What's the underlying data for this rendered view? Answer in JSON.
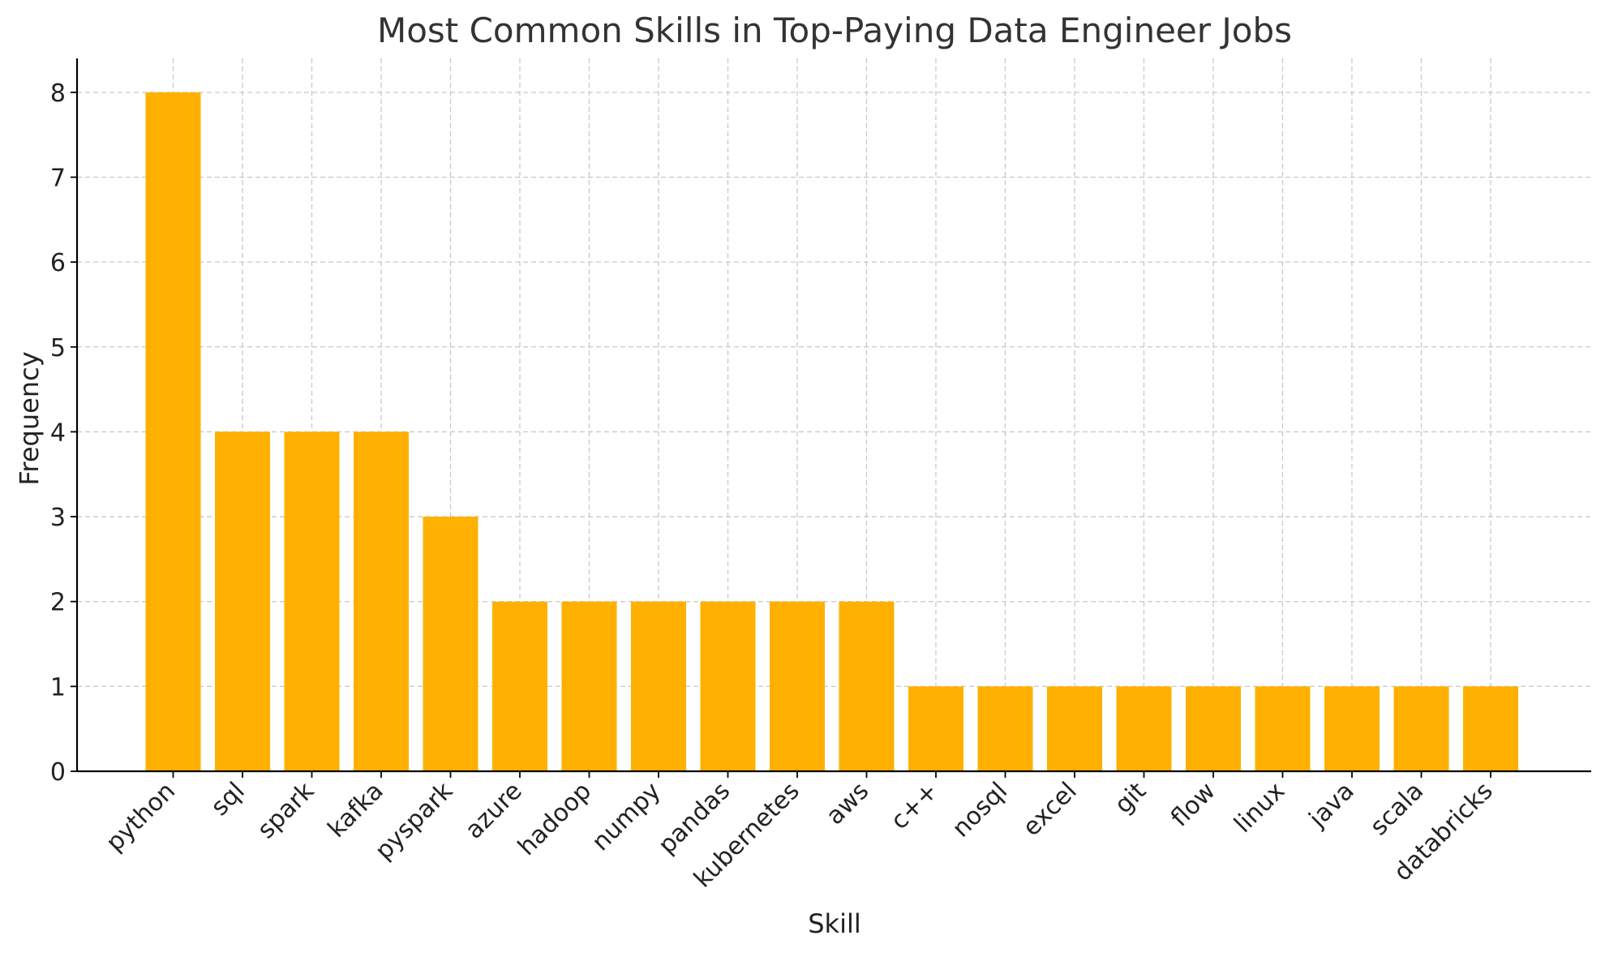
{
  "chart_data": {
    "type": "bar",
    "title": "Most Common Skills in Top-Paying Data Engineer Jobs",
    "xlabel": "Skill",
    "ylabel": "Frequency",
    "categories": [
      "python",
      "sql",
      "spark",
      "kafka",
      "pyspark",
      "azure",
      "hadoop",
      "numpy",
      "pandas",
      "kubernetes",
      "aws",
      "c++",
      "nosql",
      "excel",
      "git",
      "flow",
      "linux",
      "java",
      "scala",
      "databricks"
    ],
    "values": [
      8,
      4,
      4,
      4,
      3,
      2,
      2,
      2,
      2,
      2,
      2,
      1,
      1,
      1,
      1,
      1,
      1,
      1,
      1,
      1
    ],
    "ylim": [
      0,
      8.4
    ],
    "yticks": [
      0,
      1,
      2,
      3,
      4,
      5,
      6,
      7,
      8
    ],
    "grid": true,
    "bar_color": "#FFB000"
  }
}
